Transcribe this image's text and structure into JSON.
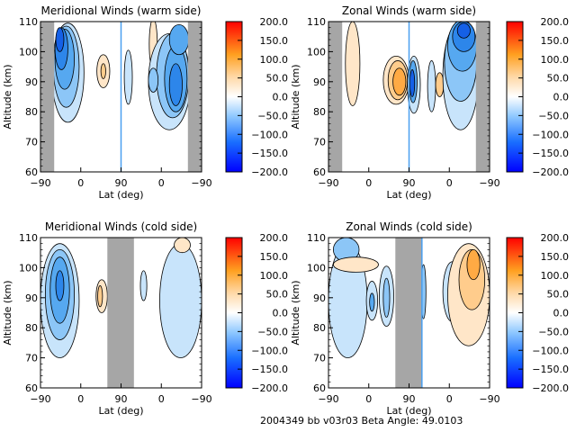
{
  "chart_data": [
    {
      "type": "heatmap",
      "title": "Meridional Winds (warm side)",
      "xlabel": "Lat (deg)",
      "ylabel": "Altitude (km)",
      "x_ticks": [
        "-90",
        "0",
        "90",
        "0",
        "-90"
      ],
      "y_ticks": [
        "60",
        "70",
        "80",
        "90",
        "100",
        "110"
      ],
      "ylim": [
        60,
        110
      ],
      "colorbar": {
        "range": [
          -200,
          200
        ],
        "ticks": [
          "200.0",
          "150.0",
          "100.0",
          "50.0",
          "0.0",
          "-50.0",
          "-100.0",
          "-150.0",
          "-200.0"
        ]
      },
      "features": [
        {
          "kind": "negative",
          "lat_range": "-70 to -20 (left)",
          "alt_range": [
            73,
            110
          ],
          "min_value": -150
        },
        {
          "kind": "positive",
          "lat_range": "~60 (left)",
          "alt_range": [
            88,
            100
          ],
          "max_value": 50
        },
        {
          "kind": "negative",
          "lat_range": "~85 (right)",
          "alt_range": [
            83,
            103
          ],
          "min_value": -50
        },
        {
          "kind": "positive",
          "lat_range": "~10 (right)",
          "alt_range": [
            98,
            110
          ],
          "max_value": 50
        },
        {
          "kind": "negative",
          "lat_range": "30 to -60 (right)",
          "alt_range": [
            73,
            110
          ],
          "min_value": -150
        }
      ]
    },
    {
      "type": "heatmap",
      "title": "Zonal Winds (warm side)",
      "xlabel": "Lat (deg)",
      "ylabel": "Altitude (km)",
      "x_ticks": [
        "-90",
        "0",
        "90",
        "0",
        "-90"
      ],
      "y_ticks": [
        "60",
        "70",
        "80",
        "90",
        "100",
        "110"
      ],
      "ylim": [
        60,
        110
      ],
      "colorbar": {
        "range": [
          -200,
          200
        ],
        "ticks": [
          "200.0",
          "150.0",
          "100.0",
          "50.0",
          "0.0",
          "-50.0",
          "-100.0",
          "-150.0",
          "-200.0"
        ]
      },
      "features": [
        {
          "kind": "positive",
          "lat_range": "~-45 (left)",
          "alt_range": [
            84,
            110
          ],
          "max_value": 50
        },
        {
          "kind": "positive",
          "lat_range": "~70 (left)",
          "alt_range": [
            84,
            100
          ],
          "max_value": 150
        },
        {
          "kind": "negative",
          "lat_range": "~85 (right)",
          "alt_range": [
            83,
            102
          ],
          "min_value": -150
        },
        {
          "kind": "negative",
          "lat_range": "~55 (right)",
          "alt_range": [
            83,
            100
          ],
          "min_value": -50
        },
        {
          "kind": "positive",
          "lat_range": "~5 (right)",
          "alt_range": [
            85,
            93
          ],
          "max_value": 75
        },
        {
          "kind": "negative",
          "lat_range": "20 to -60 (right)",
          "alt_range": [
            75,
            110
          ],
          "min_value": -175
        }
      ]
    },
    {
      "type": "heatmap",
      "title": "Meridional Winds (cold side)",
      "xlabel": "Lat (deg)",
      "ylabel": "Altitude (km)",
      "x_ticks": [
        "-90",
        "0",
        "90",
        "0",
        "-90"
      ],
      "y_ticks": [
        "60",
        "70",
        "80",
        "90",
        "100",
        "110"
      ],
      "ylim": [
        60,
        110
      ],
      "colorbar": {
        "range": [
          -200,
          200
        ],
        "ticks": [
          "200.0",
          "150.0",
          "100.0",
          "50.0",
          "0.0",
          "-50.0",
          "-100.0",
          "-150.0",
          "-200.0"
        ]
      },
      "features": [
        {
          "kind": "negative",
          "lat_range": "-90 to -10 (left)",
          "alt_range": [
            70,
            110
          ],
          "min_value": -100
        },
        {
          "kind": "positive",
          "lat_range": "~55 (left)",
          "alt_range": [
            86,
            97
          ],
          "max_value": 50
        },
        {
          "kind": "negative",
          "lat_range": "~60 (right)",
          "alt_range": [
            92,
            102
          ],
          "min_value": -50
        },
        {
          "kind": "negative",
          "lat_range": "20 to -90 (right)",
          "alt_range": [
            70,
            110
          ],
          "min_value": -50
        },
        {
          "kind": "positive",
          "lat_range": "~-30 (right)",
          "alt_range": [
            104,
            110
          ],
          "max_value": 50
        }
      ]
    },
    {
      "type": "heatmap",
      "title": "Zonal Winds (cold side)",
      "xlabel": "Lat (deg)",
      "ylabel": "Altitude (km)",
      "x_ticks": [
        "-90",
        "0",
        "90",
        "0",
        "-90"
      ],
      "y_ticks": [
        "60",
        "70",
        "80",
        "90",
        "100",
        "110"
      ],
      "ylim": [
        60,
        110
      ],
      "colorbar": {
        "range": [
          -200,
          200
        ],
        "ticks": [
          "200.0",
          "150.0",
          "100.0",
          "50.0",
          "0.0",
          "-50.0",
          "-100.0",
          "-150.0",
          "-200.0"
        ]
      },
      "features": [
        {
          "kind": "negative",
          "lat_range": "-90 to -30 (left)",
          "alt_range": [
            70,
            110
          ],
          "min_value": -75
        },
        {
          "kind": "positive",
          "lat_range": "-80 to -20 (left)",
          "alt_range": [
            95,
            105
          ],
          "max_value": 50
        },
        {
          "kind": "negative",
          "lat_range": "~5 (left)",
          "alt_range": [
            83,
            95
          ],
          "min_value": -75
        },
        {
          "kind": "negative",
          "lat_range": "~40 (left)",
          "alt_range": [
            83,
            101
          ],
          "min_value": -75
        },
        {
          "kind": "negative",
          "lat_range": "~20 (right)",
          "alt_range": [
            84,
            100
          ],
          "min_value": -75
        },
        {
          "kind": "positive",
          "lat_range": "-20 to -90 (right)",
          "alt_range": [
            76,
            110
          ],
          "max_value": 125
        }
      ]
    }
  ],
  "footer": {
    "text": "2004349 bb v03r03   Beta Angle: 49.0103"
  }
}
